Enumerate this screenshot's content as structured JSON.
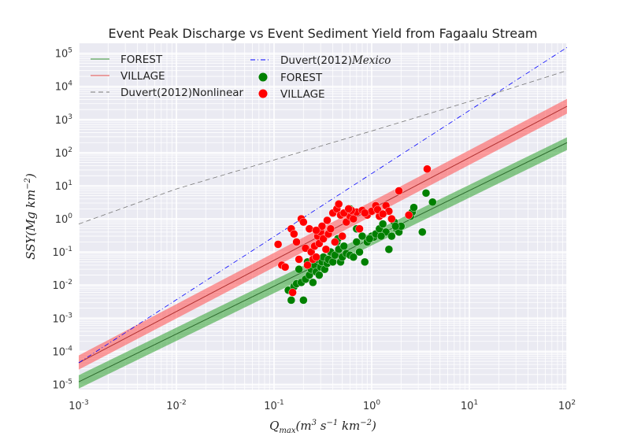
{
  "chart_data": {
    "type": "scatter",
    "title": "Event Peak Discharge vs Event Sediment Yield from Fagaalu Stream",
    "xlabel": "Q_max(m^3 s^-1 km^-2)",
    "ylabel": "SSY(Mg km^-2)",
    "x_scale": "log",
    "y_scale": "log",
    "xlim": [
      0.001,
      100
    ],
    "ylim": [
      7e-06,
      200000
    ],
    "x_ticks": [
      {
        "value": 0.001,
        "base": "10",
        "exp": "-3"
      },
      {
        "value": 0.01,
        "base": "10",
        "exp": "-2"
      },
      {
        "value": 0.1,
        "base": "10",
        "exp": "-1"
      },
      {
        "value": 1,
        "base": "10",
        "exp": "0"
      },
      {
        "value": 10,
        "base": "10",
        "exp": "1"
      },
      {
        "value": 100,
        "base": "10",
        "exp": "2"
      }
    ],
    "y_ticks": [
      {
        "value": 1e-05,
        "base": "10",
        "exp": "-5"
      },
      {
        "value": 0.0001,
        "base": "10",
        "exp": "-4"
      },
      {
        "value": 0.001,
        "base": "10",
        "exp": "-3"
      },
      {
        "value": 0.01,
        "base": "10",
        "exp": "-2"
      },
      {
        "value": 0.1,
        "base": "10",
        "exp": "-1"
      },
      {
        "value": 1,
        "base": "10",
        "exp": "0"
      },
      {
        "value": 10,
        "base": "10",
        "exp": "1"
      },
      {
        "value": 100,
        "base": "10",
        "exp": "2"
      },
      {
        "value": 1000,
        "base": "10",
        "exp": "3"
      },
      {
        "value": 10000,
        "base": "10",
        "exp": "4"
      },
      {
        "value": 100000,
        "base": "10",
        "exp": "5"
      }
    ],
    "grid": true,
    "legend": {
      "placement": "top-left",
      "entries": [
        {
          "label": "FOREST",
          "kind": "line",
          "color": "#2e8b2e"
        },
        {
          "label": "VILLAGE",
          "kind": "line",
          "color": "#e04848"
        },
        {
          "label": "Duvert(2012)Nonlinear",
          "kind": "dashed",
          "color": "#777777"
        },
        {
          "label": "Duvert(2012)",
          "label_math": "Mexico",
          "kind": "dashdot",
          "color": "#0000ff"
        },
        {
          "label": "FOREST",
          "kind": "marker",
          "color": "#008000"
        },
        {
          "label": "VILLAGE",
          "kind": "marker",
          "color": "#ff0000"
        }
      ]
    },
    "lines": [
      {
        "name": "FOREST",
        "style": "solid",
        "color": "#2e6b2e",
        "band_color": "#2ca02c",
        "x": [
          0.001,
          100
        ],
        "y": [
          1.2e-05,
          200
        ],
        "band_lower": [
          7.5e-06,
          120
        ],
        "band_upper": [
          1.9e-05,
          290
        ]
      },
      {
        "name": "VILLAGE",
        "style": "solid",
        "color": "#b03030",
        "band_color": "#ff4d4d",
        "x": [
          0.001,
          100
        ],
        "y": [
          4.5e-05,
          2500
        ],
        "band_lower": [
          2.8e-05,
          1500
        ],
        "band_upper": [
          7.5e-05,
          4200
        ]
      },
      {
        "name": "Duvert(2012)Nonlinear",
        "style": "dashed",
        "color": "#777777",
        "x": [
          0.001,
          0.01,
          0.1,
          1,
          10,
          100
        ],
        "y": [
          0.7,
          8,
          60,
          450,
          3500,
          30000
        ]
      },
      {
        "name": "Duvert(2012)Mexico",
        "style": "dashdot",
        "color": "#0000ff",
        "x": [
          0.001,
          100
        ],
        "y": [
          4.5e-05,
          150000
        ]
      }
    ],
    "series": [
      {
        "name": "FOREST",
        "color": "#008000",
        "points": [
          [
            0.14,
            0.007
          ],
          [
            0.15,
            0.0035
          ],
          [
            0.16,
            0.009
          ],
          [
            0.17,
            0.011
          ],
          [
            0.19,
            0.012
          ],
          [
            0.2,
            0.0035
          ],
          [
            0.18,
            0.03
          ],
          [
            0.21,
            0.015
          ],
          [
            0.22,
            0.05
          ],
          [
            0.23,
            0.02
          ],
          [
            0.24,
            0.03
          ],
          [
            0.25,
            0.012
          ],
          [
            0.26,
            0.04
          ],
          [
            0.27,
            0.025
          ],
          [
            0.28,
            0.06
          ],
          [
            0.29,
            0.02
          ],
          [
            0.3,
            0.035
          ],
          [
            0.31,
            0.05
          ],
          [
            0.32,
            0.07
          ],
          [
            0.33,
            0.03
          ],
          [
            0.35,
            0.045
          ],
          [
            0.36,
            0.06
          ],
          [
            0.38,
            0.1
          ],
          [
            0.4,
            0.05
          ],
          [
            0.42,
            0.08
          ],
          [
            0.44,
            0.2
          ],
          [
            0.46,
            0.12
          ],
          [
            0.48,
            0.05
          ],
          [
            0.5,
            0.07
          ],
          [
            0.52,
            0.15
          ],
          [
            0.55,
            0.09
          ],
          [
            0.6,
            0.08
          ],
          [
            0.65,
            0.07
          ],
          [
            0.7,
            0.2
          ],
          [
            0.75,
            0.1
          ],
          [
            0.8,
            0.3
          ],
          [
            0.85,
            0.05
          ],
          [
            0.9,
            0.2
          ],
          [
            1.0,
            0.3
          ],
          [
            1.05,
            0.28
          ],
          [
            1.1,
            0.35
          ],
          [
            1.2,
            0.5
          ],
          [
            1.3,
            0.7
          ],
          [
            1.4,
            0.4
          ],
          [
            1.5,
            0.12
          ],
          [
            1.6,
            0.3
          ],
          [
            1.7,
            0.8
          ],
          [
            1.8,
            0.5
          ],
          [
            1.9,
            0.4
          ],
          [
            2.0,
            0.6
          ],
          [
            2.5,
            1.2
          ],
          [
            2.6,
            1.6
          ],
          [
            2.7,
            2.2
          ],
          [
            3.3,
            0.4
          ],
          [
            3.6,
            6.0
          ],
          [
            4.2,
            3.2
          ],
          [
            0.6,
            2.0
          ],
          [
            0.5,
            0.3
          ],
          [
            0.45,
            0.25
          ],
          [
            0.7,
            0.5
          ],
          [
            0.95,
            0.25
          ],
          [
            1.25,
            0.3
          ],
          [
            1.75,
            0.6
          ]
        ]
      },
      {
        "name": "VILLAGE",
        "color": "#ff0000",
        "points": [
          [
            0.11,
            0.17
          ],
          [
            0.12,
            0.04
          ],
          [
            0.13,
            0.035
          ],
          [
            0.15,
            0.5
          ],
          [
            0.155,
            0.006
          ],
          [
            0.16,
            0.35
          ],
          [
            0.17,
            0.2
          ],
          [
            0.18,
            0.06
          ],
          [
            0.19,
            1.0
          ],
          [
            0.2,
            0.8
          ],
          [
            0.21,
            0.13
          ],
          [
            0.22,
            0.04
          ],
          [
            0.23,
            0.5
          ],
          [
            0.24,
            0.1
          ],
          [
            0.25,
            0.06
          ],
          [
            0.26,
            0.15
          ],
          [
            0.27,
            0.07
          ],
          [
            0.28,
            0.3
          ],
          [
            0.29,
            0.18
          ],
          [
            0.3,
            0.4
          ],
          [
            0.31,
            0.6
          ],
          [
            0.32,
            0.25
          ],
          [
            0.34,
            0.12
          ],
          [
            0.36,
            0.35
          ],
          [
            0.38,
            0.5
          ],
          [
            0.4,
            1.5
          ],
          [
            0.42,
            0.2
          ],
          [
            0.44,
            2.0
          ],
          [
            0.46,
            2.8
          ],
          [
            0.48,
            1.3
          ],
          [
            0.5,
            0.3
          ],
          [
            0.55,
            0.8
          ],
          [
            0.6,
            1.2
          ],
          [
            0.65,
            1.0
          ],
          [
            0.7,
            1.6
          ],
          [
            0.75,
            0.5
          ],
          [
            0.8,
            1.8
          ],
          [
            0.9,
            1.3
          ],
          [
            1.0,
            1.7
          ],
          [
            1.1,
            2.5
          ],
          [
            1.2,
            1.2
          ],
          [
            1.4,
            2.5
          ],
          [
            1.5,
            1.7
          ],
          [
            1.6,
            1.0
          ],
          [
            1.9,
            7.0
          ],
          [
            2.4,
            1.3
          ],
          [
            3.7,
            32
          ],
          [
            0.35,
            0.9
          ],
          [
            0.52,
            1.5
          ],
          [
            0.62,
            1.8
          ],
          [
            0.85,
            1.5
          ],
          [
            1.15,
            1.9
          ],
          [
            1.3,
            1.4
          ],
          [
            0.58,
            2.0
          ],
          [
            0.27,
            0.45
          ]
        ]
      }
    ]
  }
}
